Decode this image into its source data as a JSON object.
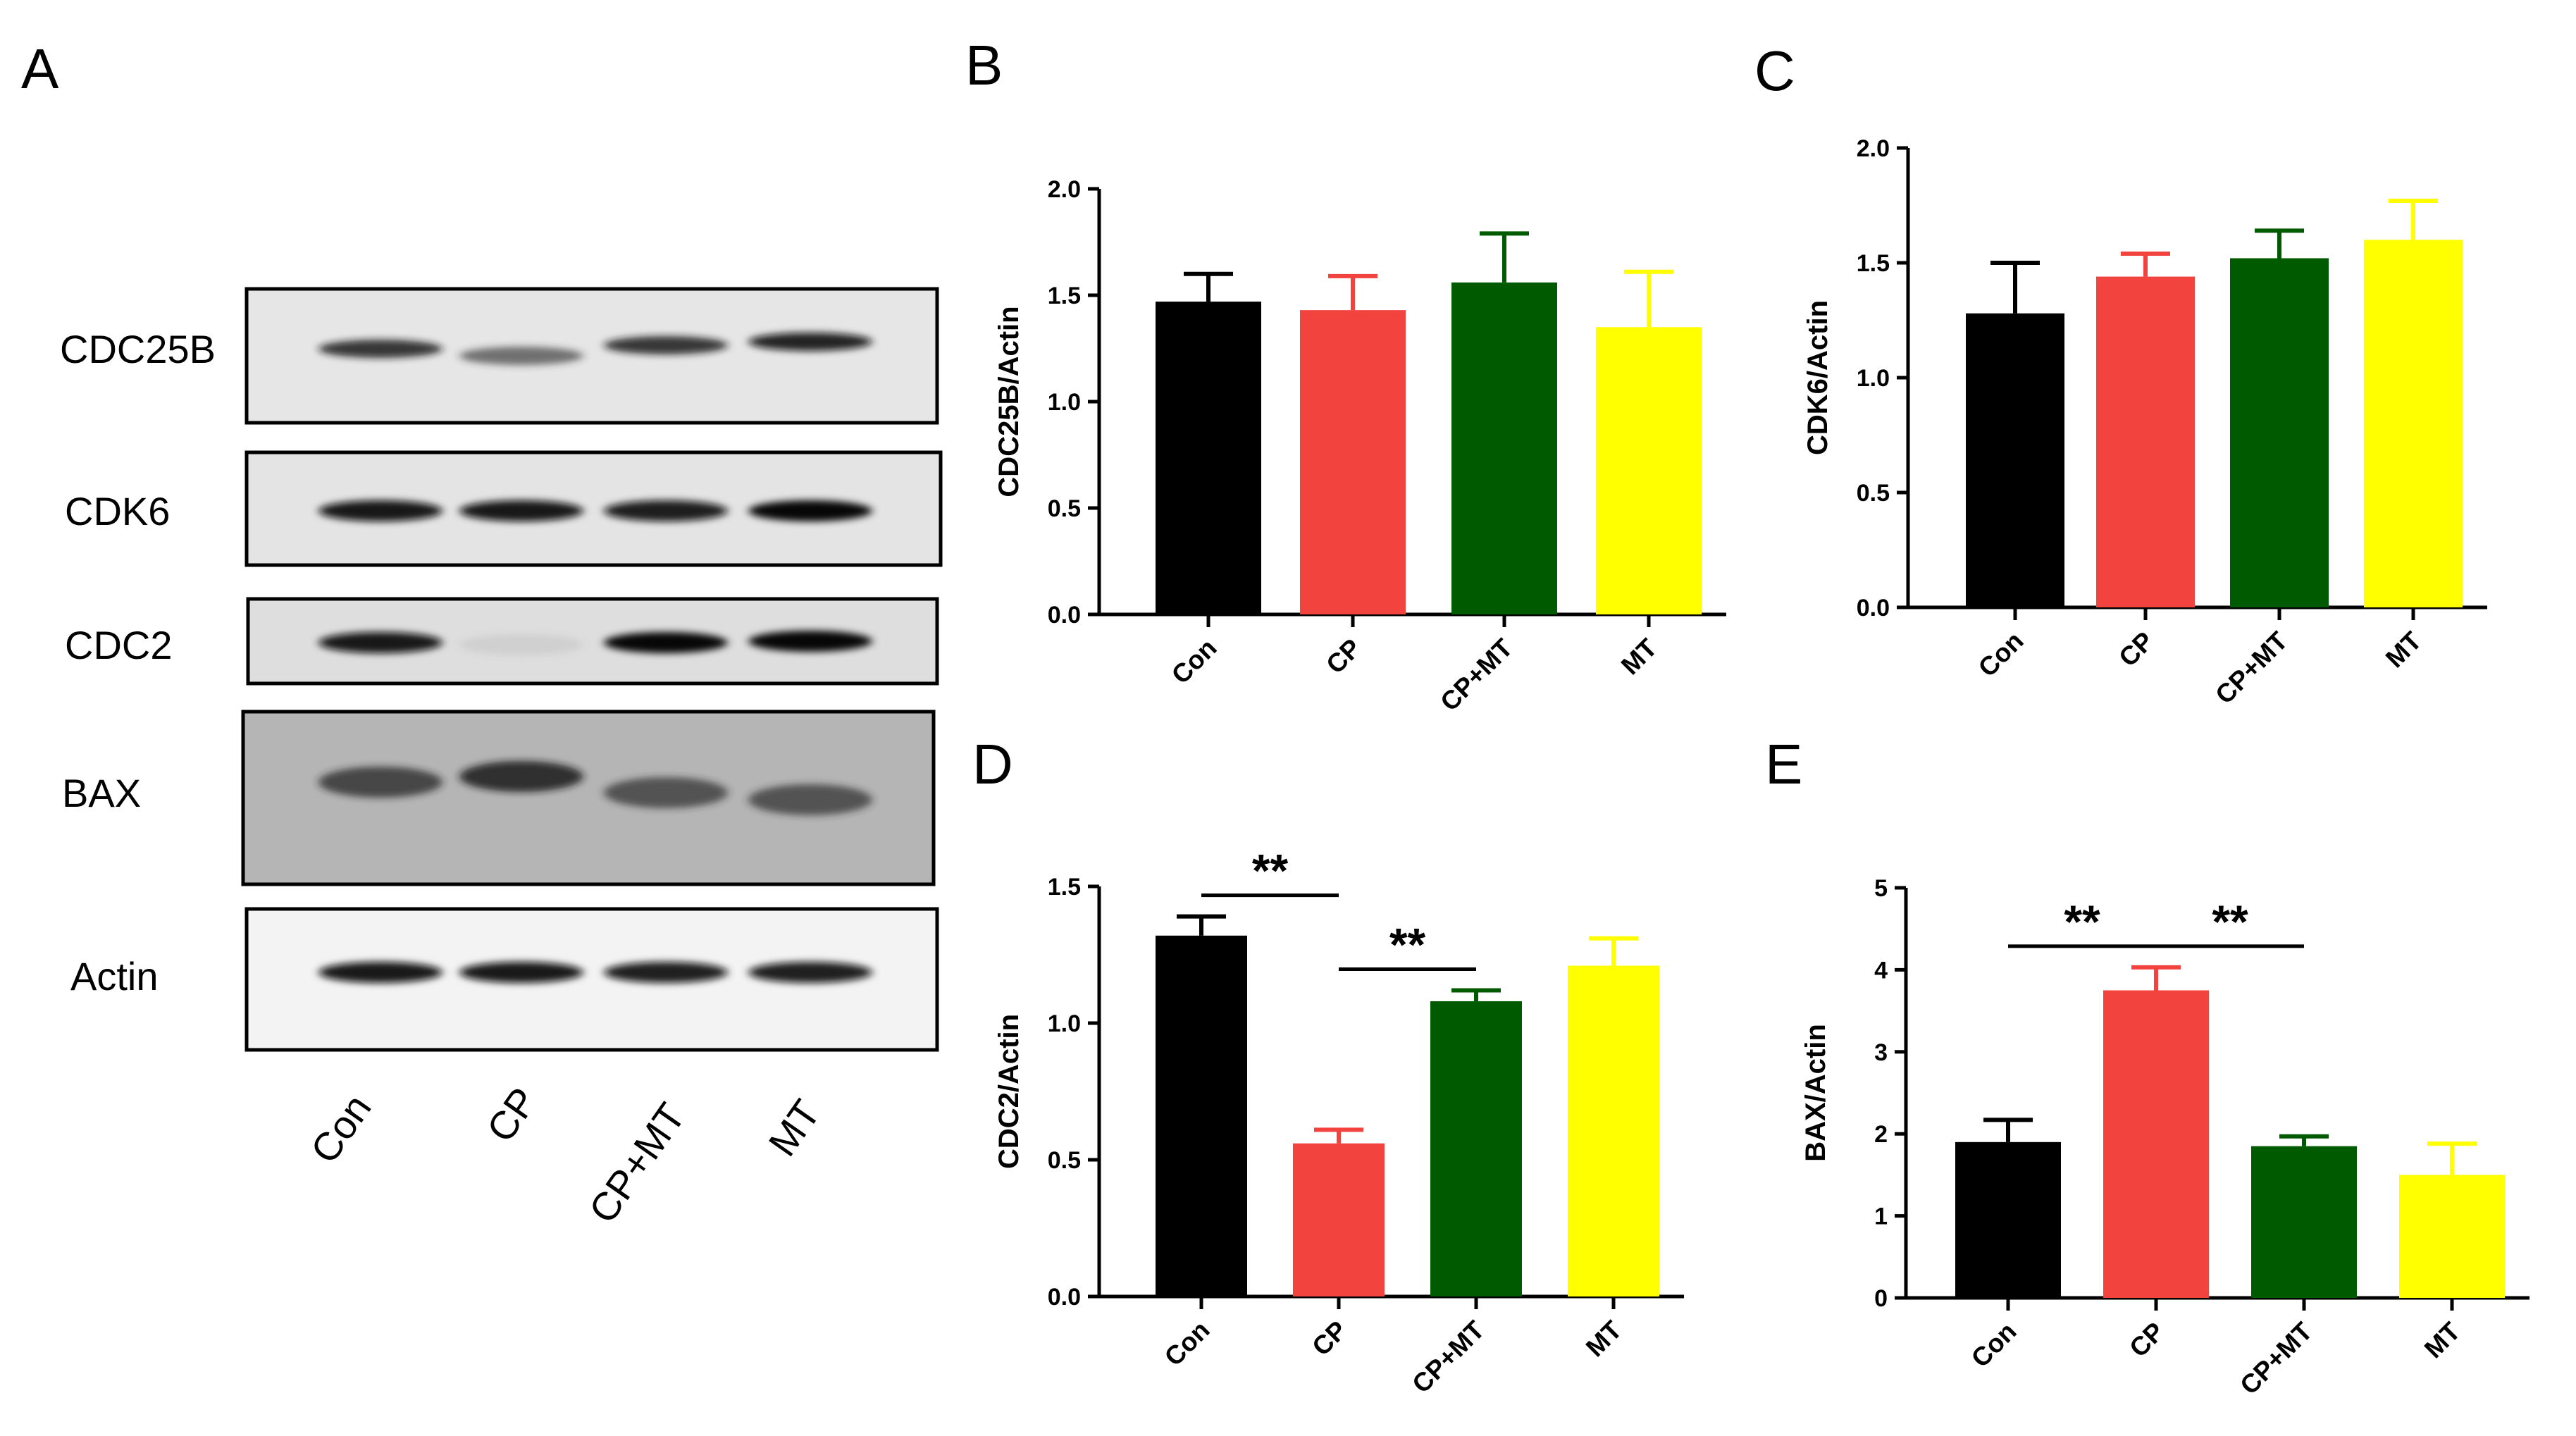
{
  "panels": {
    "a": "A",
    "b": "B",
    "c": "C",
    "d": "D",
    "e": "E"
  },
  "blot": {
    "rows": [
      {
        "label": "CDC25B",
        "intensity": [
          0.85,
          0.65,
          0.85,
          0.9
        ]
      },
      {
        "label": "CDK6",
        "intensity": [
          0.95,
          0.95,
          0.92,
          0.97
        ]
      },
      {
        "label": "CDC2",
        "intensity": [
          0.95,
          0.08,
          0.97,
          0.97
        ]
      },
      {
        "label": "BAX",
        "intensity": [
          0.75,
          0.85,
          0.7,
          0.7
        ]
      },
      {
        "label": "Actin",
        "intensity": [
          0.95,
          0.95,
          0.92,
          0.92
        ]
      }
    ],
    "lanes": [
      "Con",
      "CP",
      "CP+MT",
      "MT"
    ]
  },
  "chart_data": [
    {
      "panel": "B",
      "type": "bar",
      "categories": [
        "Con",
        "CP",
        "CP+MT",
        "MT"
      ],
      "values": [
        1.47,
        1.43,
        1.56,
        1.35
      ],
      "errors": [
        0.13,
        0.16,
        0.23,
        0.26
      ],
      "ylabel": "CDC25B/Actin",
      "ylim": [
        0,
        2.0
      ],
      "yticks": [
        "0.0",
        "0.5",
        "1.0",
        "1.5",
        "2.0"
      ],
      "colors": [
        "#000000",
        "#f2433f",
        "#005a00",
        "#ffff00"
      ],
      "significance": []
    },
    {
      "panel": "C",
      "type": "bar",
      "categories": [
        "Con",
        "CP",
        "CP+MT",
        "MT"
      ],
      "values": [
        1.28,
        1.44,
        1.52,
        1.6
      ],
      "errors": [
        0.22,
        0.1,
        0.12,
        0.17
      ],
      "ylabel": "CDK6/Actin",
      "ylim": [
        0,
        2.0
      ],
      "yticks": [
        "0.0",
        "0.5",
        "1.0",
        "1.5",
        "2.0"
      ],
      "colors": [
        "#000000",
        "#f2433f",
        "#005a00",
        "#ffff00"
      ],
      "significance": []
    },
    {
      "panel": "D",
      "type": "bar",
      "categories": [
        "Con",
        "CP",
        "CP+MT",
        "MT"
      ],
      "values": [
        1.32,
        0.56,
        1.08,
        1.21
      ],
      "errors": [
        0.07,
        0.05,
        0.04,
        0.1
      ],
      "ylabel": "CDC2/Actin",
      "ylim": [
        0,
        1.5
      ],
      "yticks": [
        "0.0",
        "0.5",
        "1.0",
        "1.5"
      ],
      "colors": [
        "#000000",
        "#f2433f",
        "#005a00",
        "#ffff00"
      ],
      "significance": [
        {
          "from": 0,
          "to": 1,
          "label": "**"
        },
        {
          "from": 1,
          "to": 2,
          "label": "**"
        }
      ]
    },
    {
      "panel": "E",
      "type": "bar",
      "categories": [
        "Con",
        "CP",
        "CP+MT",
        "MT"
      ],
      "values": [
        1.9,
        3.75,
        1.85,
        1.5
      ],
      "errors": [
        0.27,
        0.28,
        0.12,
        0.38
      ],
      "ylabel": "BAX/Actin",
      "ylim": [
        0,
        5
      ],
      "yticks": [
        "0",
        "1",
        "2",
        "3",
        "4",
        "5"
      ],
      "colors": [
        "#000000",
        "#f2433f",
        "#005a00",
        "#ffff00"
      ],
      "significance": [
        {
          "from": 0,
          "to": 1,
          "label": "**"
        },
        {
          "from": 1,
          "to": 2,
          "label": "**"
        }
      ]
    }
  ]
}
